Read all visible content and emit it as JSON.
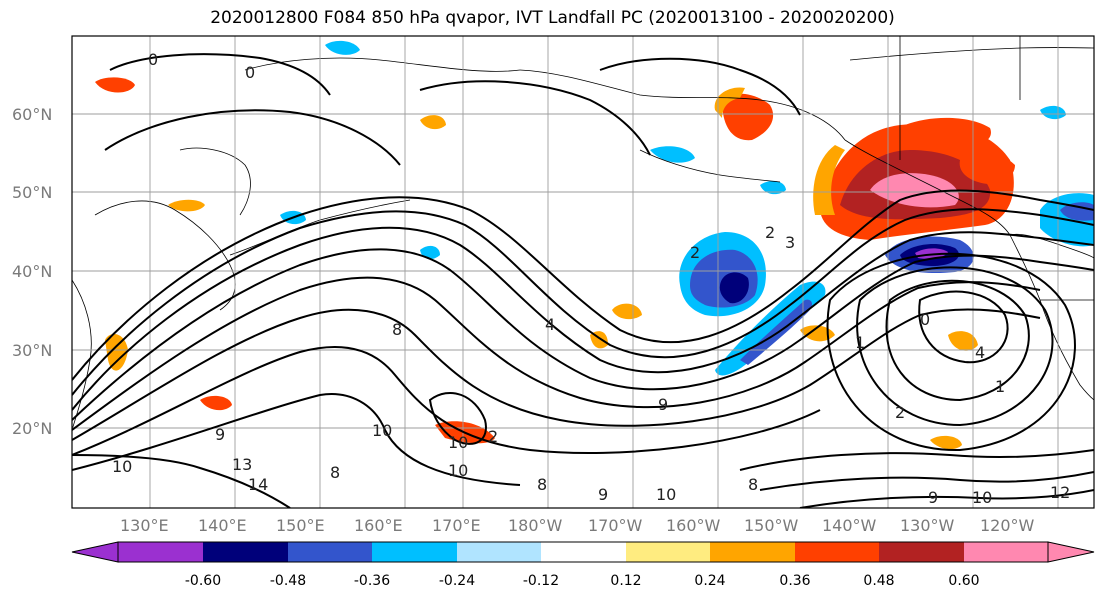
{
  "title": "2020012800 F084 850 hPa qvapor, IVT Landfall PC (2020013100 - 2020020200)",
  "latitude_labels": [
    "60°N",
    "50°N",
    "40°N",
    "30°N",
    "20°N"
  ],
  "longitude_labels": [
    "130°E",
    "140°E",
    "150°E",
    "160°E",
    "170°E",
    "180°W",
    "170°W",
    "160°W",
    "150°W",
    "140°W",
    "130°W",
    "120°W"
  ],
  "colorbar": {
    "colors": [
      "#9b30d0",
      "#00007a",
      "#3355cc",
      "#00bfff",
      "#b0e4ff",
      "#ffffff",
      "#ffec80",
      "#ffa500",
      "#ff4000",
      "#b22222",
      "#ff88b0"
    ],
    "tick_labels": [
      "-0.60",
      "-0.48",
      "-0.36",
      "-0.24",
      "-0.12",
      "0.12",
      "0.24",
      "0.36",
      "0.48",
      "0.60"
    ]
  },
  "contour_labels": [
    "0",
    "0",
    "2",
    "2",
    "3",
    "4",
    "8",
    "8",
    "9",
    "9",
    "10",
    "10",
    "10",
    "13",
    "14",
    "12",
    "0",
    "1",
    "2",
    "1",
    "4",
    "9",
    "10",
    "10",
    "8",
    "9",
    "8",
    "10",
    "2"
  ]
}
